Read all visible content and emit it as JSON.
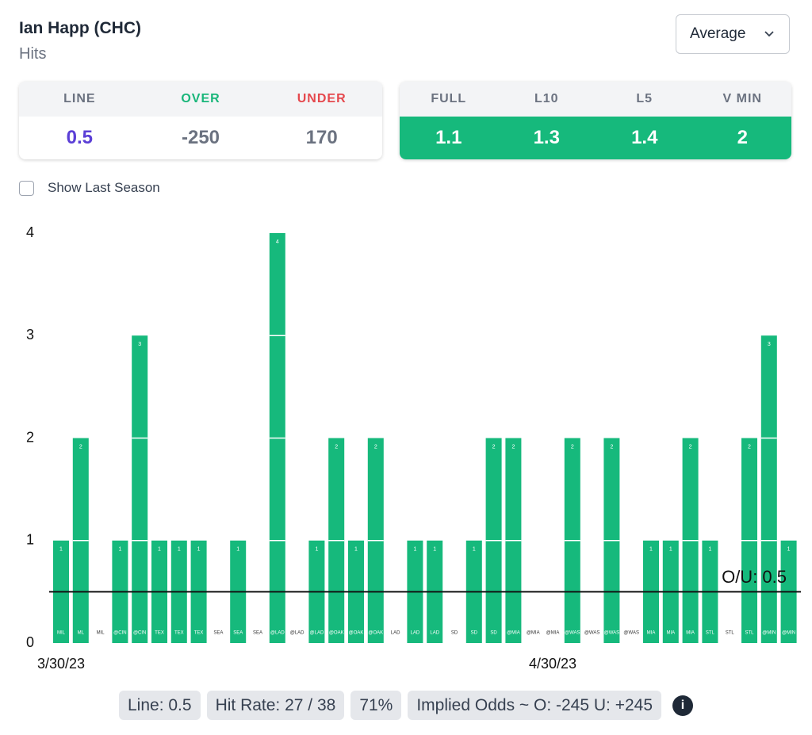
{
  "header": {
    "title": "Ian Happ (CHC)",
    "subtitle": "Hits",
    "dropdown": "Average"
  },
  "odds": {
    "labels": [
      "LINE",
      "OVER",
      "UNDER"
    ],
    "values": [
      0.5,
      -250,
      170
    ]
  },
  "averages": {
    "labels": [
      "FULL",
      "L10",
      "L5",
      "V MIN"
    ],
    "values": [
      1.1,
      1.3,
      1.4,
      2
    ]
  },
  "checkbox": "Show Last Season",
  "chart_data": {
    "type": "bar",
    "categories": [
      "MIL",
      "ML",
      "MIL",
      "@CIN",
      "@CIN",
      "TEX",
      "TEX",
      "TEX",
      "SEA",
      "SEA",
      "SEA",
      "@LAD",
      "@LAD",
      "@LAD",
      "@OAK",
      "@OAK",
      "@OAK",
      "LAD",
      "LAD",
      "LAD",
      "SD",
      "SD",
      "SD",
      "@MIA",
      "@MIA",
      "@MIA",
      "@WAS",
      "@WAS",
      "@WAS",
      "@WAS",
      "MIA",
      "MIA",
      "MIA",
      "STL",
      "STL",
      "STL",
      "@MIN",
      "@MIN"
    ],
    "values": [
      1,
      2,
      0,
      1,
      3,
      1,
      1,
      1,
      0,
      1,
      0,
      4,
      0,
      1,
      2,
      1,
      2,
      0,
      1,
      1,
      0,
      1,
      2,
      2,
      0,
      0,
      2,
      0,
      2,
      0,
      1,
      1,
      2,
      1,
      0,
      2,
      3,
      1
    ],
    "color": "#16b97c",
    "ylim": [
      0,
      4
    ],
    "yticks": [
      0,
      1,
      2,
      3,
      4
    ],
    "date_labels": [
      {
        "category": 0,
        "label": "3/30/23"
      },
      {
        "category": 25,
        "label": "4/30/23"
      }
    ],
    "line": {
      "value": 0.5,
      "label": "O/U: 0.5"
    }
  },
  "footer": [
    "Line: 0.5",
    "Hit Rate: 27 / 38",
    "71%",
    "Implied Odds ~ O: -245 U: +245"
  ]
}
